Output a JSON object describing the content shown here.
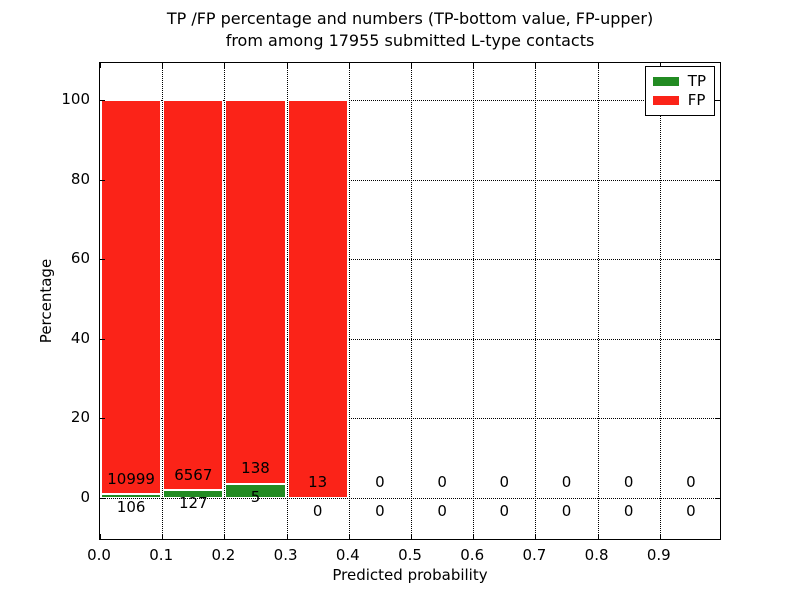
{
  "title_line1": "TP /FP percentage and numbers (TP-bottom value, FP-upper)",
  "title_line2": "from among 17955 submitted L-type contacts",
  "colors": {
    "tp_green": "#228b22",
    "fp_red": "#fb2318",
    "bar_edge": "#ffffff",
    "grid": "#000000",
    "background": "#ffffff",
    "text": "#000000"
  },
  "chart_data": {
    "type": "bar",
    "stacked": true,
    "title": "TP /FP percentage and numbers (TP-bottom value, FP-upper) from among 17955 submitted L-type contacts",
    "total_submitted_contacts": 17955,
    "xlabel": "Predicted probability",
    "ylabel": "Percentage",
    "xlim": [
      0.0,
      1.0
    ],
    "ylim": [
      -10.8,
      109.3
    ],
    "xticks": [
      "0.0",
      "0.1",
      "0.2",
      "0.3",
      "0.4",
      "0.5",
      "0.6",
      "0.7",
      "0.8",
      "0.9"
    ],
    "yticks": [
      0,
      20,
      40,
      60,
      80,
      100
    ],
    "grid": true,
    "grid_style": "dotted",
    "legend": {
      "position": "upper right",
      "entries": [
        {
          "label": "TP",
          "color": "#228b22"
        },
        {
          "label": "FP",
          "color": "#fb2318"
        }
      ]
    },
    "bins": [
      {
        "x_start": 0.0,
        "x_end": 0.1,
        "tp_count": 106,
        "fp_count": 10999,
        "tp_pct": 0.95,
        "fp_pct": 99.05
      },
      {
        "x_start": 0.1,
        "x_end": 0.2,
        "tp_count": 127,
        "fp_count": 6567,
        "tp_pct": 1.9,
        "fp_pct": 98.1
      },
      {
        "x_start": 0.2,
        "x_end": 0.3,
        "tp_count": 5,
        "fp_count": 138,
        "tp_pct": 3.5,
        "fp_pct": 96.5
      },
      {
        "x_start": 0.3,
        "x_end": 0.4,
        "tp_count": 0,
        "fp_count": 13,
        "tp_pct": 0.0,
        "fp_pct": 100.0
      },
      {
        "x_start": 0.4,
        "x_end": 0.5,
        "tp_count": 0,
        "fp_count": 0,
        "tp_pct": 0.0,
        "fp_pct": 0.0
      },
      {
        "x_start": 0.5,
        "x_end": 0.6,
        "tp_count": 0,
        "fp_count": 0,
        "tp_pct": 0.0,
        "fp_pct": 0.0
      },
      {
        "x_start": 0.6,
        "x_end": 0.7,
        "tp_count": 0,
        "fp_count": 0,
        "tp_pct": 0.0,
        "fp_pct": 0.0
      },
      {
        "x_start": 0.7,
        "x_end": 0.8,
        "tp_count": 0,
        "fp_count": 0,
        "tp_pct": 0.0,
        "fp_pct": 0.0
      },
      {
        "x_start": 0.8,
        "x_end": 0.9,
        "tp_count": 0,
        "fp_count": 0,
        "tp_pct": 0.0,
        "fp_pct": 0.0
      },
      {
        "x_start": 0.9,
        "x_end": 1.0,
        "tp_count": 0,
        "fp_count": 0,
        "tp_pct": 0.0,
        "fp_pct": 0.0
      }
    ],
    "annotation_rule": "FP count printed above the 0% line in each bin, TP count printed below it"
  }
}
